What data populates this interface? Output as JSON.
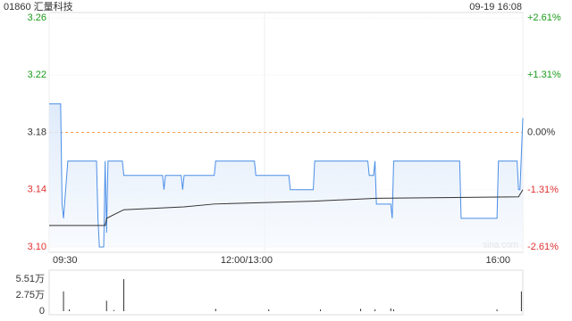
{
  "chart_data": [
    {
      "type": "line",
      "title": "01860 汇量科技",
      "subtitle": "09-19 16:08",
      "watermark": "sina.com",
      "xlim": [
        0,
        330
      ],
      "xticks": [
        {
          "value": 0,
          "label": "09:30"
        },
        {
          "value": 150,
          "label": "12:00/13:00"
        },
        {
          "value": 330,
          "label": "16:00"
        }
      ],
      "ylim": [
        3.1,
        3.26
      ],
      "yticks": [
        3.26,
        3.22,
        3.18,
        3.14,
        {
          "value": 3.1,
          "label": "3.10"
        }
      ],
      "y2lim": [
        -2.61,
        2.61
      ],
      "y2ticks": [
        {
          "value": 2.61,
          "label": "+2.61%"
        },
        {
          "value": 1.31,
          "label": "+1.31%"
        },
        {
          "value": 0,
          "label": "0.00%"
        },
        {
          "value": -1.31,
          "label": "-1.31%"
        },
        {
          "value": -2.61,
          "label": "-2.61%"
        }
      ],
      "prev_close": 3.18,
      "up_color": "#1a9b1a",
      "down_color": "#e03030",
      "grid": true,
      "series": [
        {
          "color": "#4a8ee6",
          "fill": true,
          "x": [
            0,
            8,
            9,
            10,
            13,
            33,
            34,
            35,
            38,
            39,
            40,
            41,
            51,
            52,
            79,
            80,
            81,
            92,
            93,
            94,
            115,
            116,
            143,
            144,
            167,
            168,
            184,
            185,
            222,
            223,
            226,
            227,
            228,
            238,
            239,
            240,
            286,
            287,
            312,
            313,
            326,
            327,
            328,
            330
          ],
          "values": [
            3.2,
            3.2,
            3.13,
            3.12,
            3.16,
            3.16,
            3.12,
            3.1,
            3.1,
            3.16,
            3.11,
            3.16,
            3.16,
            3.15,
            3.15,
            3.14,
            3.15,
            3.15,
            3.14,
            3.15,
            3.15,
            3.16,
            3.16,
            3.15,
            3.15,
            3.14,
            3.14,
            3.16,
            3.16,
            3.15,
            3.15,
            3.16,
            3.13,
            3.13,
            3.12,
            3.16,
            3.16,
            3.12,
            3.12,
            3.16,
            3.16,
            3.14,
            3.14,
            3.19
          ]
        },
        {
          "color": "#333333",
          "x": [
            0,
            39,
            40,
            52,
            94,
            115,
            184,
            228,
            327,
            330
          ],
          "values": [
            3.115,
            3.115,
            3.12,
            3.126,
            3.128,
            3.13,
            3.132,
            3.134,
            3.135,
            3.14
          ]
        }
      ]
    },
    {
      "type": "bar",
      "color": "#333333",
      "xlim": [
        0,
        330
      ],
      "ylim": [
        0,
        5.51
      ],
      "yticks": [
        {
          "value": 5.51,
          "label": "5.51万"
        },
        {
          "value": 2.75,
          "label": "2.75万"
        },
        0
      ],
      "x": [
        10,
        14,
        40,
        45,
        52,
        116,
        153,
        189,
        217,
        227,
        238,
        240,
        312,
        329
      ],
      "values": [
        3.4,
        0.3,
        1.8,
        0.2,
        5.5,
        0.4,
        0.3,
        0.3,
        0.4,
        0.3,
        0.5,
        0.3,
        0.3,
        3.4
      ]
    }
  ]
}
